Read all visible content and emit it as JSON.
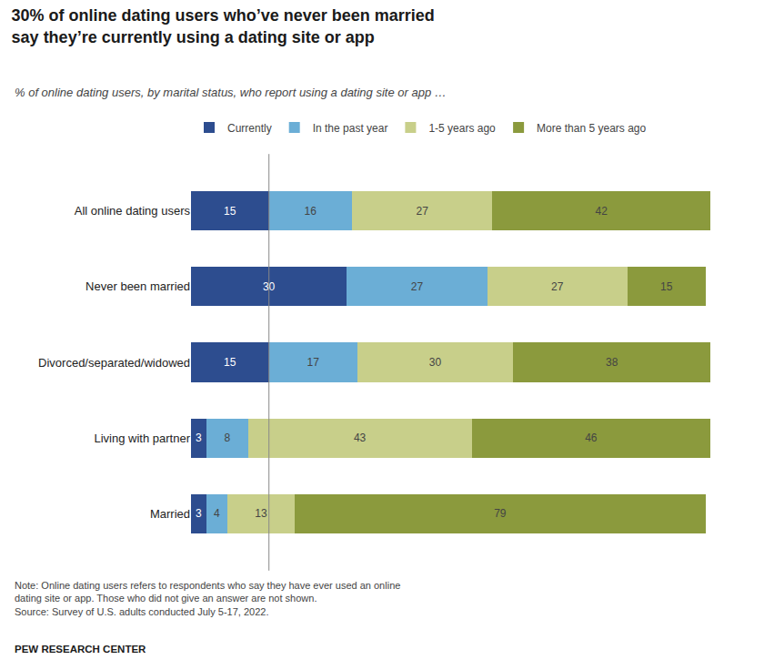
{
  "chart_data": {
    "type": "bar",
    "orientation": "horizontal",
    "stacked": true,
    "data_labels": true,
    "grid": false,
    "legend": "top left",
    "tick_labels": "y",
    "title": "30% of online dating users who’ve never been married\nsay they’re currently using a dating site or app",
    "subtitle": "% of online dating users, by marital status, who report using a dating site or app …",
    "categories": [
      "All online dating users",
      "Never been married",
      "Divorced/separated/widowed",
      "Living with partner",
      "Married"
    ],
    "series": [
      {
        "name": "Currently",
        "color": "#2d4d8f",
        "values": [
          15,
          30,
          15,
          3,
          3
        ]
      },
      {
        "name": "In the past year",
        "color": "#6baed6",
        "values": [
          16,
          27,
          17,
          8,
          4
        ]
      },
      {
        "name": "1-5 years ago",
        "color": "#c8cf8a",
        "values": [
          27,
          27,
          30,
          43,
          13
        ]
      },
      {
        "name": "More than 5 years ago",
        "color": "#8b9a3d",
        "values": [
          42,
          15,
          38,
          46,
          79
        ]
      }
    ],
    "xlim": [
      0,
      105
    ],
    "xticks": [],
    "reference_line_x": 15,
    "notes": [
      "Note: Online dating users refers to respondents who say they have ever used an online",
      "dating site or app. Those who did not give an answer are not shown.",
      "Source: Survey of U.S. adults conducted July 5-17, 2022."
    ],
    "source": "PEW RESEARCH CENTER"
  }
}
